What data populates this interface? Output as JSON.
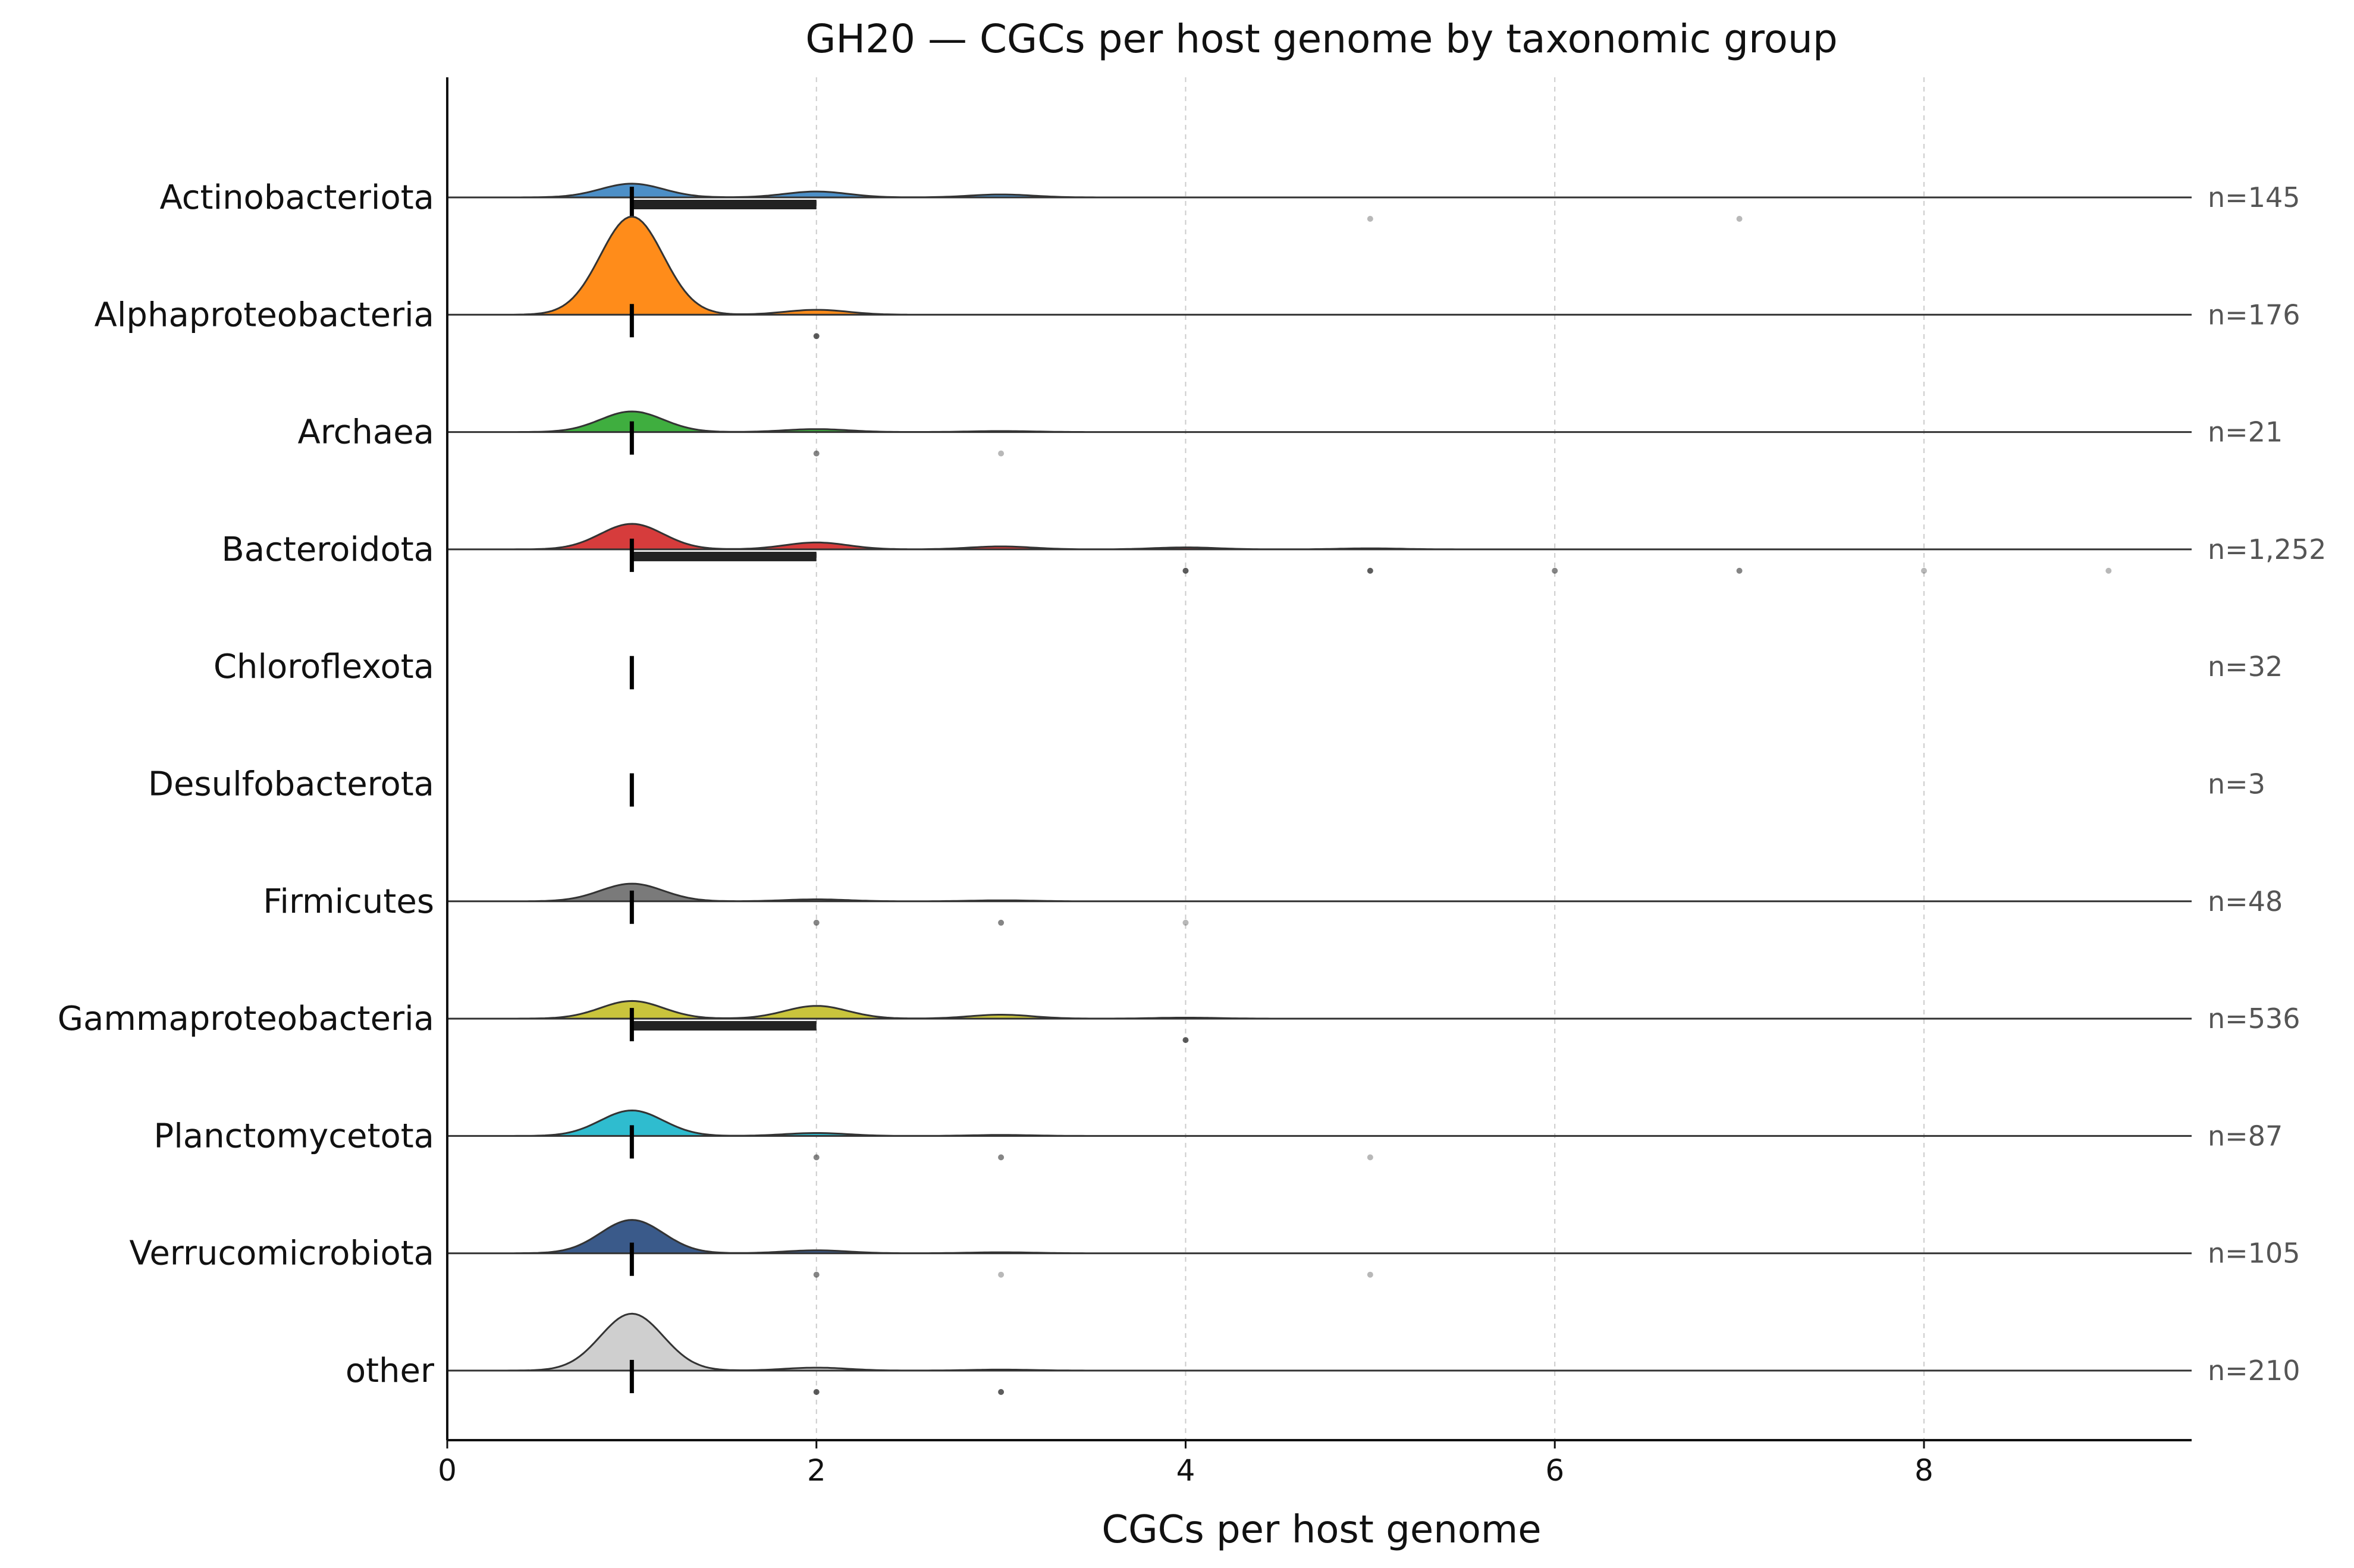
{
  "chart_data": {
    "type": "raincloud",
    "title": "GH20 — CGCs per host genome by taxonomic group",
    "xlabel": "CGCs per host genome",
    "ylabel": "",
    "xlim": [
      0,
      9.45
    ],
    "xticks": [
      0,
      2,
      4,
      6,
      8
    ],
    "grid": "x dashed",
    "groups": [
      {
        "name": "Actinobacteriota",
        "n_label": "n=145",
        "color": "#4c8fc7",
        "median": 1,
        "iqr": [
          1,
          2
        ],
        "density": [
          [
            1,
            0.14
          ],
          [
            2,
            0.06
          ],
          [
            3,
            0.03
          ]
        ],
        "outliers": [
          {
            "x": 5,
            "alpha": 0.35
          },
          {
            "x": 7,
            "alpha": 0.35
          }
        ]
      },
      {
        "name": "Alphaproteobacteria",
        "n_label": "n=176",
        "color": "#ff8c1a",
        "median": 1,
        "iqr": [
          1,
          1
        ],
        "density": [
          [
            1,
            1.0
          ],
          [
            2,
            0.05
          ]
        ],
        "outliers": [
          {
            "x": 2,
            "alpha": 0.8
          }
        ]
      },
      {
        "name": "Archaea",
        "n_label": "n=21",
        "color": "#3fae3f",
        "median": 1,
        "iqr": [
          1,
          1
        ],
        "density": [
          [
            1,
            0.21
          ],
          [
            2,
            0.03
          ],
          [
            3,
            0.01
          ]
        ],
        "outliers": [
          {
            "x": 2,
            "alpha": 0.6
          },
          {
            "x": 3,
            "alpha": 0.35
          }
        ]
      },
      {
        "name": "Bacteroidota",
        "n_label": "n=1,252",
        "color": "#d63c3c",
        "median": 1,
        "iqr": [
          1,
          2
        ],
        "density": [
          [
            1,
            0.26
          ],
          [
            2,
            0.07
          ],
          [
            3,
            0.03
          ],
          [
            4,
            0.02
          ],
          [
            5,
            0.01
          ]
        ],
        "outliers": [
          {
            "x": 4,
            "alpha": 0.8
          },
          {
            "x": 5,
            "alpha": 0.8
          },
          {
            "x": 6,
            "alpha": 0.6
          },
          {
            "x": 7,
            "alpha": 0.6
          },
          {
            "x": 8,
            "alpha": 0.35
          },
          {
            "x": 9,
            "alpha": 0.35
          }
        ]
      },
      {
        "name": "Chloroflexota",
        "n_label": "n=32",
        "color": "#9467bd",
        "median": 1,
        "iqr": [
          1,
          1
        ],
        "density": [],
        "outliers": []
      },
      {
        "name": "Desulfobacterota",
        "n_label": "n=3",
        "color": "#8c564b",
        "median": 1,
        "iqr": [
          1,
          1
        ],
        "density": [],
        "outliers": []
      },
      {
        "name": "Firmicutes",
        "n_label": "n=48",
        "color": "#7a7a7a",
        "median": 1,
        "iqr": [
          1,
          1
        ],
        "density": [
          [
            1,
            0.18
          ],
          [
            2,
            0.02
          ],
          [
            3,
            0.01
          ]
        ],
        "outliers": [
          {
            "x": 2,
            "alpha": 0.6
          },
          {
            "x": 3,
            "alpha": 0.6
          },
          {
            "x": 4,
            "alpha": 0.35
          }
        ]
      },
      {
        "name": "Gammaproteobacteria",
        "n_label": "n=536",
        "color": "#c9c43c",
        "median": 1,
        "iqr": [
          1,
          2
        ],
        "density": [
          [
            1,
            0.18
          ],
          [
            2,
            0.13
          ],
          [
            3,
            0.04
          ],
          [
            4,
            0.01
          ]
        ],
        "outliers": [
          {
            "x": 4,
            "alpha": 0.8
          }
        ]
      },
      {
        "name": "Planctomycetota",
        "n_label": "n=87",
        "color": "#2fbccf",
        "median": 1,
        "iqr": [
          1,
          1
        ],
        "density": [
          [
            1,
            0.26
          ],
          [
            2,
            0.03
          ],
          [
            3,
            0.01
          ]
        ],
        "outliers": [
          {
            "x": 2,
            "alpha": 0.6
          },
          {
            "x": 3,
            "alpha": 0.6
          },
          {
            "x": 5,
            "alpha": 0.35
          }
        ]
      },
      {
        "name": "Verrucomicrobiota",
        "n_label": "n=105",
        "color": "#3a5a8a",
        "median": 1,
        "iqr": [
          1,
          1
        ],
        "density": [
          [
            1,
            0.34
          ],
          [
            2,
            0.03
          ],
          [
            3,
            0.01
          ]
        ],
        "outliers": [
          {
            "x": 2,
            "alpha": 0.6
          },
          {
            "x": 3,
            "alpha": 0.35
          },
          {
            "x": 5,
            "alpha": 0.35
          }
        ]
      },
      {
        "name": "other",
        "n_label": "n=210",
        "color": "#cfcfcf",
        "median": 1,
        "iqr": [
          1,
          1
        ],
        "density": [
          [
            1,
            0.58
          ],
          [
            2,
            0.03
          ],
          [
            3,
            0.01
          ]
        ],
        "outliers": [
          {
            "x": 2,
            "alpha": 0.8
          },
          {
            "x": 3,
            "alpha": 0.8
          }
        ]
      }
    ]
  }
}
